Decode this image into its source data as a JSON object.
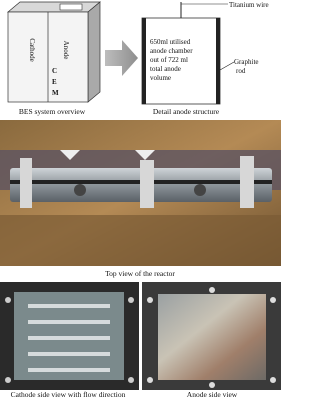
{
  "overview": {
    "cathode": "Cathode",
    "anode": "Anode",
    "cem": [
      "C",
      "E",
      "M"
    ],
    "caption": "BES system overview"
  },
  "detail": {
    "wire": "Titanium wire",
    "chamber_lines": [
      "650ml utilised",
      "anode chamber",
      "out of 722 ml",
      "total anode",
      "volume"
    ],
    "rod": [
      "Graphite",
      "rod"
    ],
    "caption": "Detail anode structure"
  },
  "top_view": {
    "caption": "Top view of the reactor"
  },
  "cathode_view": {
    "caption": "Cathode side view with flow direction"
  },
  "anode_view": {
    "caption": "Anode side view"
  }
}
